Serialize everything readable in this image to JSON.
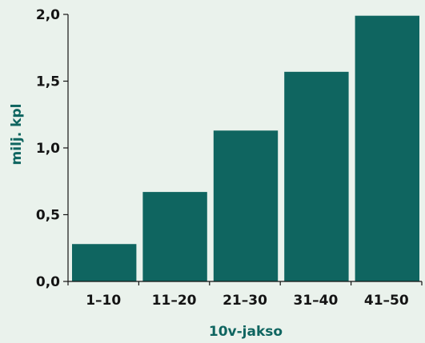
{
  "chart_data": {
    "type": "bar",
    "categories": [
      "1–10",
      "11–20",
      "21–30",
      "31–40",
      "41–50"
    ],
    "values": [
      0.28,
      0.67,
      1.13,
      1.57,
      1.99
    ],
    "xlabel": "10v-jakso",
    "ylabel": "milj. kpl",
    "ylim": [
      0,
      2.0
    ],
    "yticks": [
      0.0,
      0.5,
      1.0,
      1.5,
      2.0
    ],
    "ytick_labels": [
      "0,0",
      "0,5",
      "1,0",
      "1,5",
      "2,0"
    ],
    "grid": false,
    "bar_color": "#0f6560",
    "axis_color": "#141414"
  }
}
